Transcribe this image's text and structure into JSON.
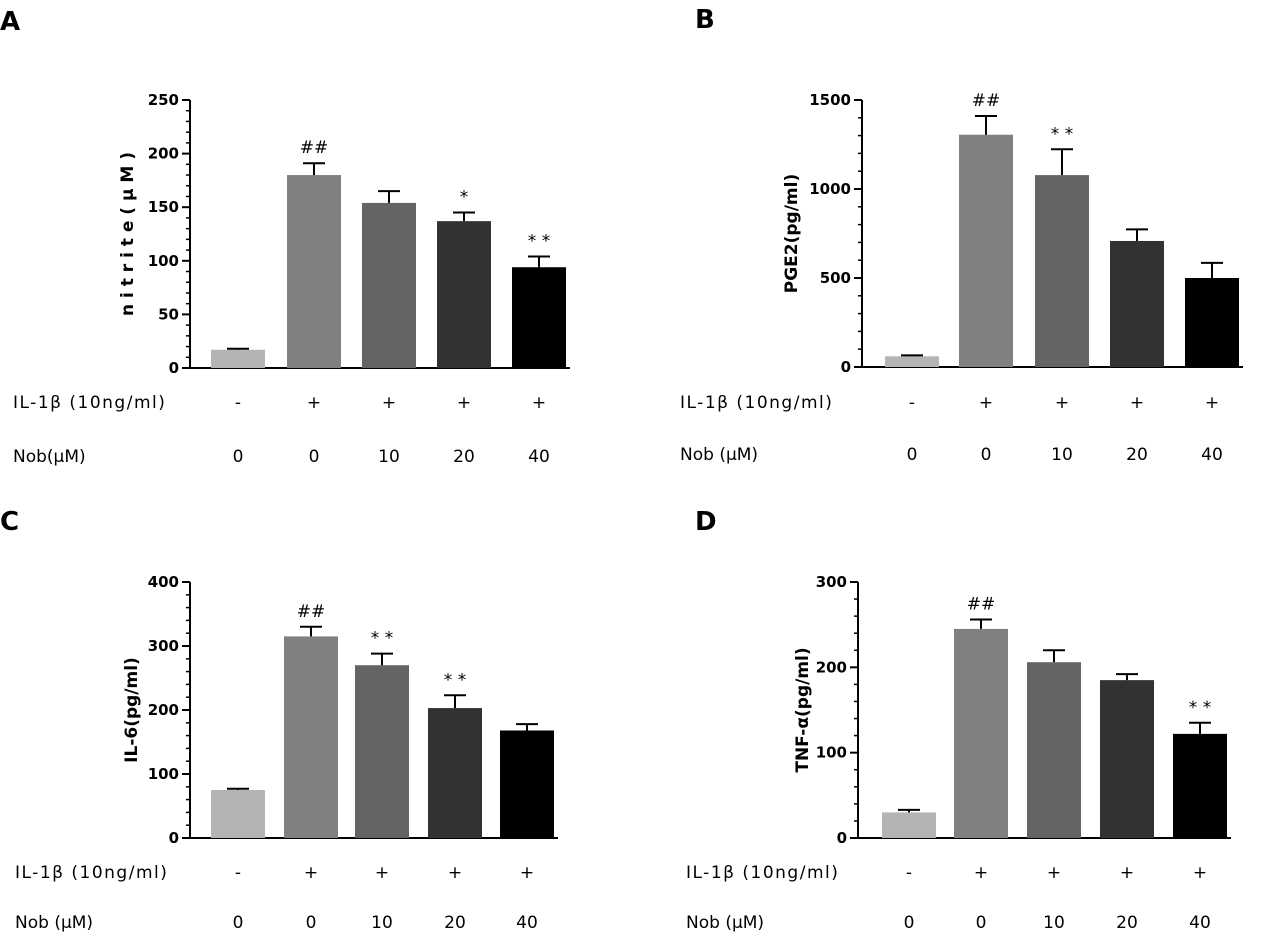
{
  "chart_data": [
    {
      "panel": "A",
      "type": "bar",
      "ylabel": "n i t r i t e ( μ M )",
      "ylim": [
        0,
        250
      ],
      "yticks": [
        0,
        50,
        100,
        150,
        200,
        250
      ],
      "values": [
        17,
        180,
        154,
        137,
        94
      ],
      "errors": [
        1,
        11,
        11,
        8,
        10
      ],
      "annotations": [
        "",
        "##",
        "",
        "*",
        "* *"
      ],
      "bar_colors": [
        "#b4b4b4",
        "#808080",
        "#646464",
        "#323232",
        "#000000"
      ],
      "rows": [
        {
          "label": "IL-1β (10ng/ml)",
          "values": [
            "-",
            "+",
            "+",
            "+",
            "+"
          ]
        },
        {
          "label": "Nob(μM)",
          "values": [
            "0",
            "0",
            "10",
            "20",
            "40"
          ]
        }
      ]
    },
    {
      "panel": "B",
      "type": "bar",
      "ylabel": "PGE2(pg/ml)",
      "ylim": [
        0,
        1500
      ],
      "yticks": [
        0,
        500,
        1000,
        1500
      ],
      "values": [
        60,
        1305,
        1078,
        708,
        500
      ],
      "errors": [
        5,
        105,
        145,
        65,
        85
      ],
      "annotations": [
        "",
        "##",
        "* *",
        "",
        ""
      ],
      "bar_colors": [
        "#b4b4b4",
        "#808080",
        "#646464",
        "#323232",
        "#000000"
      ],
      "rows": [
        {
          "label": "IL-1β (10ng/ml)",
          "values": [
            "-",
            "+",
            "+",
            "+",
            "+"
          ]
        },
        {
          "label": "Nob (μM)",
          "values": [
            "0",
            "0",
            "10",
            "20",
            "40"
          ]
        }
      ]
    },
    {
      "panel": "C",
      "type": "bar",
      "ylabel": "IL-6(pg/ml)",
      "ylim": [
        0,
        400
      ],
      "yticks": [
        0,
        100,
        200,
        300,
        400
      ],
      "values": [
        75,
        315,
        270,
        203,
        168
      ],
      "errors": [
        2,
        15,
        18,
        20,
        10
      ],
      "annotations": [
        "",
        "##",
        "* *",
        "* *",
        ""
      ],
      "bar_colors": [
        "#b4b4b4",
        "#808080",
        "#646464",
        "#323232",
        "#000000"
      ],
      "rows": [
        {
          "label": "IL-1β (10ng/ml)",
          "values": [
            "-",
            "+",
            "+",
            "+",
            "+"
          ]
        },
        {
          "label": "Nob (μM)",
          "values": [
            "0",
            "0",
            "10",
            "20",
            "40"
          ]
        }
      ]
    },
    {
      "panel": "D",
      "type": "bar",
      "ylabel": "TNF-α(pg/ml)",
      "ylim": [
        0,
        300
      ],
      "yticks": [
        0,
        100,
        200,
        300
      ],
      "values": [
        30,
        245,
        206,
        185,
        122
      ],
      "errors": [
        3,
        11,
        14,
        7,
        13
      ],
      "annotations": [
        "",
        "##",
        "",
        "",
        "* *"
      ],
      "bar_colors": [
        "#b4b4b4",
        "#808080",
        "#646464",
        "#323232",
        "#000000"
      ],
      "rows": [
        {
          "label": "IL-1β (10ng/ml)",
          "values": [
            "-",
            "+",
            "+",
            "+",
            "+"
          ]
        },
        {
          "label": "Nob (μM)",
          "values": [
            "0",
            "0",
            "10",
            "20",
            "40"
          ]
        }
      ]
    }
  ]
}
